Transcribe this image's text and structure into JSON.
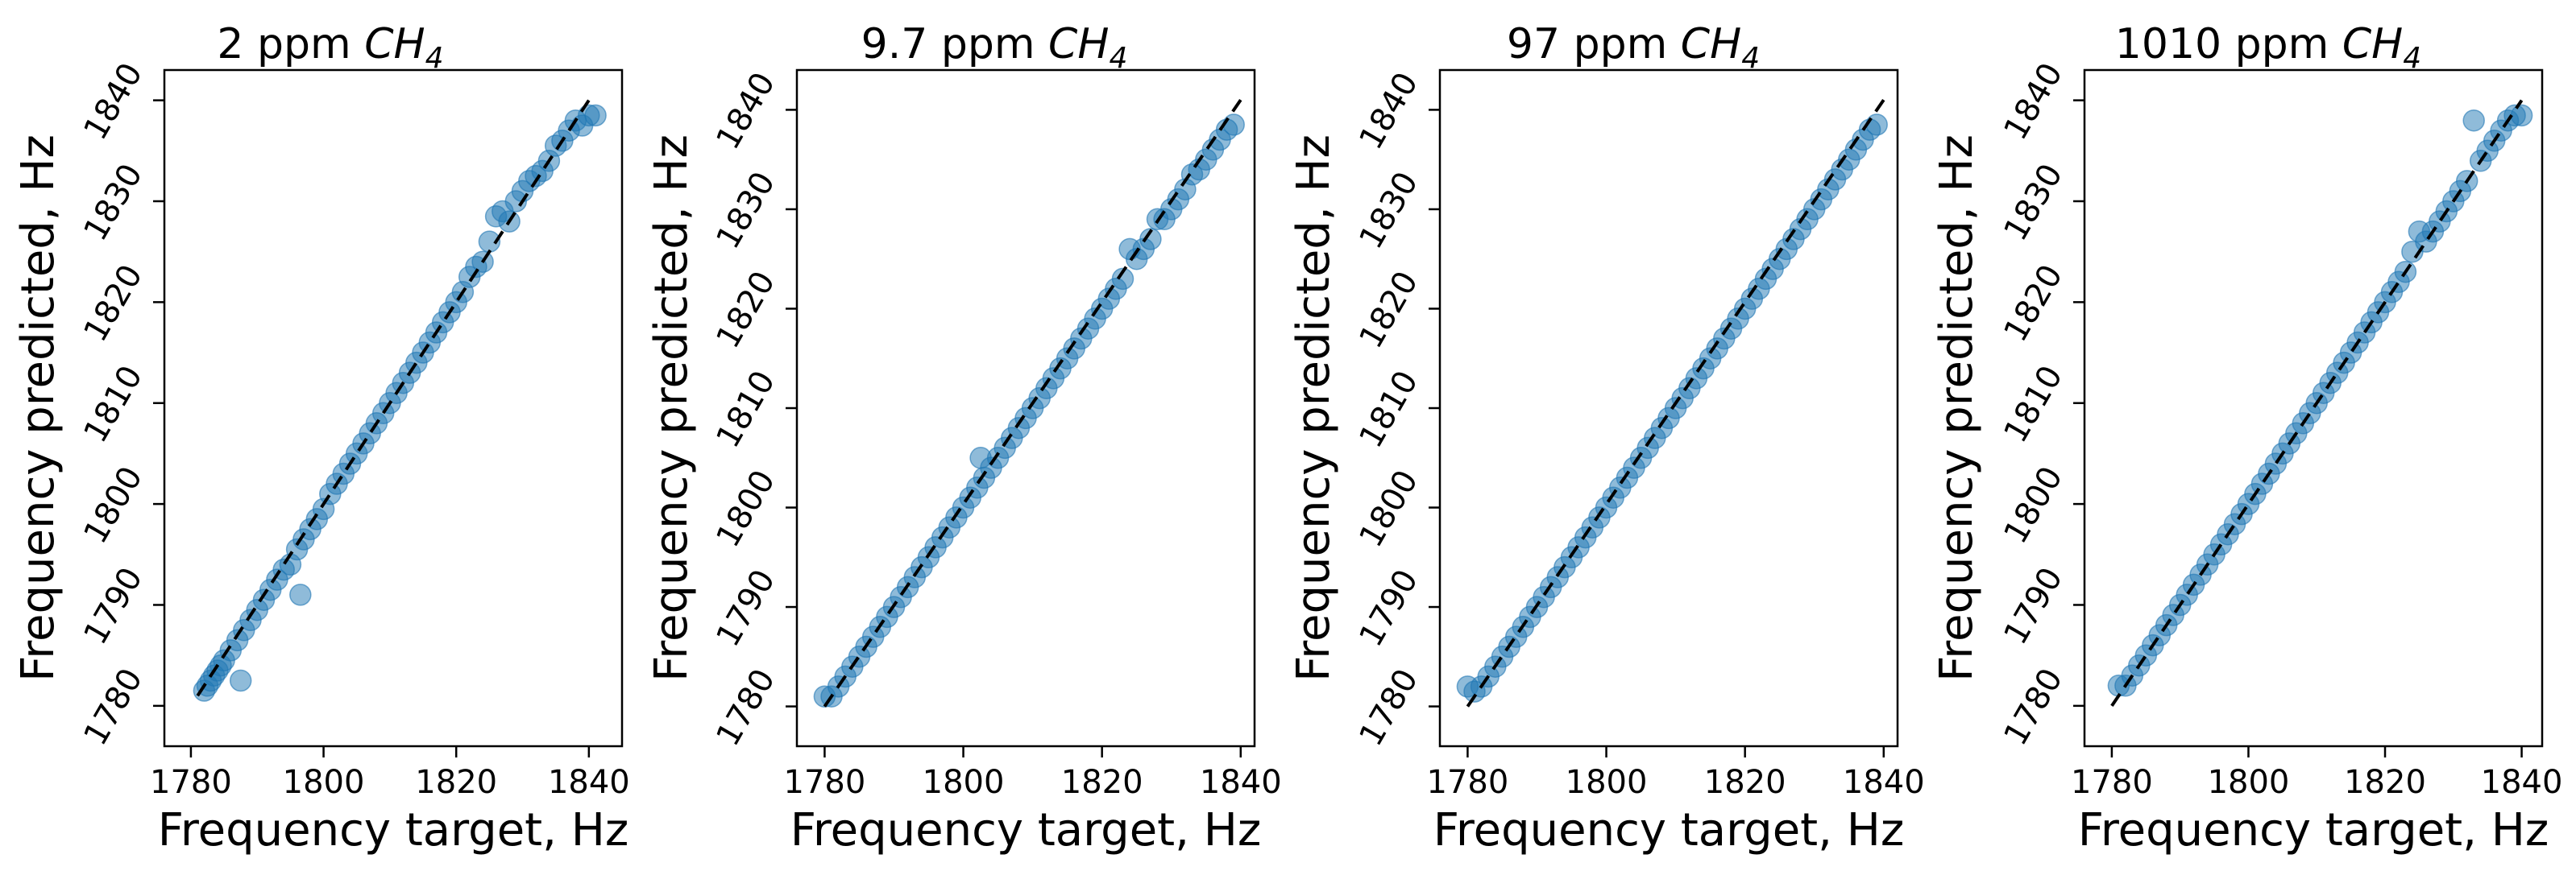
{
  "chart_data": [
    {
      "type": "scatter",
      "title_prefix": "2 ppm ",
      "title_species": "CH",
      "title_subscript": "4",
      "xlabel": "Frequency target, Hz",
      "ylabel": "Frequency predicted, Hz",
      "xlim": [
        1776,
        1845
      ],
      "ylim": [
        1776,
        1843
      ],
      "xticks": [
        1780,
        1800,
        1820,
        1840
      ],
      "yticks": [
        1780,
        1790,
        1800,
        1810,
        1820,
        1830,
        1840
      ],
      "xtick_labels": [
        "1780",
        "1800",
        "1820",
        "1840"
      ],
      "ytick_labels": [
        "1780",
        "1790",
        "1800",
        "1810",
        "1820",
        "1830",
        "1840"
      ],
      "reference_line": [
        [
          1781,
          1781
        ],
        [
          1840,
          1840
        ]
      ],
      "marker_color": "#1f77b4",
      "points": [
        [
          1782,
          1781.5
        ],
        [
          1782.5,
          1782
        ],
        [
          1783,
          1782.5
        ],
        [
          1783.5,
          1783
        ],
        [
          1784,
          1783.5
        ],
        [
          1784.5,
          1784
        ],
        [
          1785,
          1784.5
        ],
        [
          1786,
          1785.5
        ],
        [
          1787,
          1786.5
        ],
        [
          1787.5,
          1782.5
        ],
        [
          1788,
          1787.5
        ],
        [
          1789,
          1788.5
        ],
        [
          1790,
          1789.5
        ],
        [
          1791,
          1790.5
        ],
        [
          1792,
          1791.5
        ],
        [
          1793,
          1792.5
        ],
        [
          1794,
          1793.5
        ],
        [
          1795,
          1794
        ],
        [
          1796,
          1795.5
        ],
        [
          1796.5,
          1791
        ],
        [
          1797,
          1796.5
        ],
        [
          1798,
          1797.5
        ],
        [
          1799,
          1798.5
        ],
        [
          1800,
          1799.5
        ],
        [
          1801,
          1801
        ],
        [
          1802,
          1802
        ],
        [
          1803,
          1803
        ],
        [
          1804,
          1804
        ],
        [
          1805,
          1805
        ],
        [
          1806,
          1806
        ],
        [
          1807,
          1807
        ],
        [
          1808,
          1808
        ],
        [
          1809,
          1809
        ],
        [
          1810,
          1810
        ],
        [
          1811,
          1811
        ],
        [
          1812,
          1812
        ],
        [
          1813,
          1813
        ],
        [
          1814,
          1814
        ],
        [
          1815,
          1815
        ],
        [
          1816,
          1816
        ],
        [
          1817,
          1817
        ],
        [
          1818,
          1818
        ],
        [
          1819,
          1819
        ],
        [
          1820,
          1820
        ],
        [
          1821,
          1821
        ],
        [
          1822,
          1822.5
        ],
        [
          1823,
          1823.5
        ],
        [
          1824,
          1824
        ],
        [
          1825,
          1826
        ],
        [
          1826,
          1828.5
        ],
        [
          1827,
          1829
        ],
        [
          1828,
          1828
        ],
        [
          1829,
          1830
        ],
        [
          1830,
          1831
        ],
        [
          1831,
          1832
        ],
        [
          1832,
          1832.5
        ],
        [
          1833,
          1833
        ],
        [
          1834,
          1834
        ],
        [
          1835,
          1835.5
        ],
        [
          1836,
          1836
        ],
        [
          1837,
          1837
        ],
        [
          1838,
          1838
        ],
        [
          1839,
          1837.5
        ],
        [
          1840,
          1838.5
        ],
        [
          1841,
          1838.5
        ]
      ]
    },
    {
      "type": "scatter",
      "title_prefix": "9.7 ppm ",
      "title_species": "CH",
      "title_subscript": "4",
      "xlabel": "Frequency target, Hz",
      "ylabel": "Frequency predicted, Hz",
      "xlim": [
        1776,
        1842
      ],
      "ylim": [
        1776,
        1844
      ],
      "xticks": [
        1780,
        1800,
        1820,
        1840
      ],
      "yticks": [
        1780,
        1790,
        1800,
        1810,
        1820,
        1830,
        1840
      ],
      "xtick_labels": [
        "1780",
        "1800",
        "1820",
        "1840"
      ],
      "ytick_labels": [
        "1780",
        "1790",
        "1800",
        "1810",
        "1820",
        "1830",
        "1840"
      ],
      "reference_line": [
        [
          1780,
          1780
        ],
        [
          1840,
          1841
        ]
      ],
      "marker_color": "#1f77b4",
      "points": [
        [
          1780,
          1781
        ],
        [
          1781,
          1781
        ],
        [
          1782,
          1782
        ],
        [
          1783,
          1783
        ],
        [
          1784,
          1784
        ],
        [
          1785,
          1785
        ],
        [
          1786,
          1786
        ],
        [
          1787,
          1787
        ],
        [
          1788,
          1788
        ],
        [
          1789,
          1789
        ],
        [
          1790,
          1790
        ],
        [
          1791,
          1791
        ],
        [
          1792,
          1792
        ],
        [
          1793,
          1793
        ],
        [
          1794,
          1794
        ],
        [
          1795,
          1795
        ],
        [
          1796,
          1796
        ],
        [
          1797,
          1797
        ],
        [
          1798,
          1798
        ],
        [
          1799,
          1799
        ],
        [
          1800,
          1800
        ],
        [
          1801,
          1801
        ],
        [
          1802,
          1802
        ],
        [
          1802.5,
          1805
        ],
        [
          1803,
          1803
        ],
        [
          1804,
          1804
        ],
        [
          1805,
          1805
        ],
        [
          1806,
          1806
        ],
        [
          1807,
          1807
        ],
        [
          1808,
          1808
        ],
        [
          1809,
          1809
        ],
        [
          1810,
          1810
        ],
        [
          1811,
          1811
        ],
        [
          1812,
          1812
        ],
        [
          1813,
          1813
        ],
        [
          1814,
          1814
        ],
        [
          1815,
          1815
        ],
        [
          1816,
          1816
        ],
        [
          1817,
          1817
        ],
        [
          1818,
          1818
        ],
        [
          1819,
          1819
        ],
        [
          1820,
          1820
        ],
        [
          1821,
          1821
        ],
        [
          1822,
          1822
        ],
        [
          1823,
          1823
        ],
        [
          1824,
          1826
        ],
        [
          1825,
          1825
        ],
        [
          1826,
          1826
        ],
        [
          1827,
          1827
        ],
        [
          1828,
          1829
        ],
        [
          1829,
          1829
        ],
        [
          1830,
          1830
        ],
        [
          1831,
          1831
        ],
        [
          1832,
          1832
        ],
        [
          1833,
          1833.5
        ],
        [
          1834,
          1834
        ],
        [
          1835,
          1835
        ],
        [
          1836,
          1836
        ],
        [
          1837,
          1837
        ],
        [
          1838,
          1838
        ],
        [
          1839,
          1838.5
        ]
      ]
    },
    {
      "type": "scatter",
      "title_prefix": "97 ppm ",
      "title_species": "CH",
      "title_subscript": "4",
      "xlabel": "Frequency target, Hz",
      "ylabel": "Frequency predicted, Hz",
      "xlim": [
        1776,
        1842
      ],
      "ylim": [
        1776,
        1844
      ],
      "xticks": [
        1780,
        1800,
        1820,
        1840
      ],
      "yticks": [
        1780,
        1790,
        1800,
        1810,
        1820,
        1830,
        1840
      ],
      "xtick_labels": [
        "1780",
        "1800",
        "1820",
        "1840"
      ],
      "ytick_labels": [
        "1780",
        "1790",
        "1800",
        "1810",
        "1820",
        "1830",
        "1840"
      ],
      "reference_line": [
        [
          1780,
          1780
        ],
        [
          1840,
          1841
        ]
      ],
      "marker_color": "#1f77b4",
      "points": [
        [
          1780,
          1782
        ],
        [
          1781,
          1781.5
        ],
        [
          1782,
          1782
        ],
        [
          1783,
          1783
        ],
        [
          1784,
          1784
        ],
        [
          1785,
          1785
        ],
        [
          1786,
          1786
        ],
        [
          1787,
          1787
        ],
        [
          1788,
          1788
        ],
        [
          1789,
          1789
        ],
        [
          1790,
          1790
        ],
        [
          1791,
          1791
        ],
        [
          1792,
          1792
        ],
        [
          1793,
          1793
        ],
        [
          1794,
          1794
        ],
        [
          1795,
          1795
        ],
        [
          1796,
          1796
        ],
        [
          1797,
          1797
        ],
        [
          1798,
          1798
        ],
        [
          1799,
          1799
        ],
        [
          1800,
          1800
        ],
        [
          1801,
          1801
        ],
        [
          1802,
          1802
        ],
        [
          1803,
          1803
        ],
        [
          1804,
          1804
        ],
        [
          1805,
          1805
        ],
        [
          1806,
          1806
        ],
        [
          1807,
          1807
        ],
        [
          1808,
          1808
        ],
        [
          1809,
          1809
        ],
        [
          1810,
          1810
        ],
        [
          1811,
          1811
        ],
        [
          1812,
          1812
        ],
        [
          1813,
          1813
        ],
        [
          1814,
          1814
        ],
        [
          1815,
          1815
        ],
        [
          1816,
          1816
        ],
        [
          1817,
          1817
        ],
        [
          1818,
          1818
        ],
        [
          1819,
          1819
        ],
        [
          1820,
          1820
        ],
        [
          1821,
          1821
        ],
        [
          1822,
          1822
        ],
        [
          1823,
          1823
        ],
        [
          1824,
          1824
        ],
        [
          1825,
          1825
        ],
        [
          1826,
          1826
        ],
        [
          1827,
          1827
        ],
        [
          1828,
          1828
        ],
        [
          1829,
          1829
        ],
        [
          1830,
          1830
        ],
        [
          1831,
          1831
        ],
        [
          1832,
          1832
        ],
        [
          1833,
          1833
        ],
        [
          1834,
          1834
        ],
        [
          1835,
          1835
        ],
        [
          1836,
          1836
        ],
        [
          1837,
          1837
        ],
        [
          1838,
          1838
        ],
        [
          1839,
          1838.5
        ]
      ]
    },
    {
      "type": "scatter",
      "title_prefix": "1010 ppm ",
      "title_species": "CH",
      "title_subscript": "4",
      "xlabel": "Frequency target, Hz",
      "ylabel": "Frequency predicted, Hz",
      "xlim": [
        1776,
        1843
      ],
      "ylim": [
        1776,
        1843
      ],
      "xticks": [
        1780,
        1800,
        1820,
        1840
      ],
      "yticks": [
        1780,
        1790,
        1800,
        1810,
        1820,
        1830,
        1840
      ],
      "xtick_labels": [
        "1780",
        "1800",
        "1820",
        "1840"
      ],
      "ytick_labels": [
        "1780",
        "1790",
        "1800",
        "1810",
        "1820",
        "1830",
        "1840"
      ],
      "reference_line": [
        [
          1780,
          1780
        ],
        [
          1840,
          1840
        ]
      ],
      "marker_color": "#1f77b4",
      "points": [
        [
          1781,
          1782
        ],
        [
          1782,
          1782
        ],
        [
          1783,
          1783
        ],
        [
          1784,
          1784
        ],
        [
          1785,
          1785
        ],
        [
          1786,
          1786
        ],
        [
          1787,
          1787
        ],
        [
          1788,
          1788
        ],
        [
          1789,
          1789
        ],
        [
          1790,
          1790
        ],
        [
          1791,
          1791
        ],
        [
          1792,
          1792
        ],
        [
          1793,
          1793
        ],
        [
          1794,
          1794
        ],
        [
          1795,
          1795
        ],
        [
          1796,
          1796
        ],
        [
          1797,
          1797
        ],
        [
          1798,
          1798
        ],
        [
          1799,
          1799
        ],
        [
          1800,
          1800
        ],
        [
          1801,
          1801
        ],
        [
          1802,
          1802
        ],
        [
          1803,
          1803
        ],
        [
          1804,
          1804
        ],
        [
          1805,
          1805
        ],
        [
          1806,
          1806
        ],
        [
          1807,
          1807
        ],
        [
          1808,
          1808
        ],
        [
          1809,
          1809
        ],
        [
          1810,
          1810
        ],
        [
          1811,
          1811
        ],
        [
          1812,
          1812
        ],
        [
          1813,
          1813
        ],
        [
          1814,
          1814
        ],
        [
          1815,
          1815
        ],
        [
          1816,
          1816
        ],
        [
          1817,
          1817
        ],
        [
          1818,
          1818
        ],
        [
          1819,
          1819
        ],
        [
          1820,
          1820
        ],
        [
          1821,
          1821
        ],
        [
          1822,
          1822
        ],
        [
          1823,
          1823
        ],
        [
          1824,
          1825
        ],
        [
          1825,
          1827
        ],
        [
          1826,
          1826
        ],
        [
          1827,
          1827
        ],
        [
          1828,
          1828
        ],
        [
          1829,
          1829
        ],
        [
          1830,
          1830
        ],
        [
          1831,
          1831
        ],
        [
          1832,
          1832
        ],
        [
          1833,
          1838
        ],
        [
          1834,
          1834
        ],
        [
          1835,
          1835
        ],
        [
          1836,
          1836
        ],
        [
          1837,
          1837
        ],
        [
          1838,
          1838
        ],
        [
          1839,
          1838.5
        ],
        [
          1840,
          1838.5
        ]
      ]
    }
  ]
}
